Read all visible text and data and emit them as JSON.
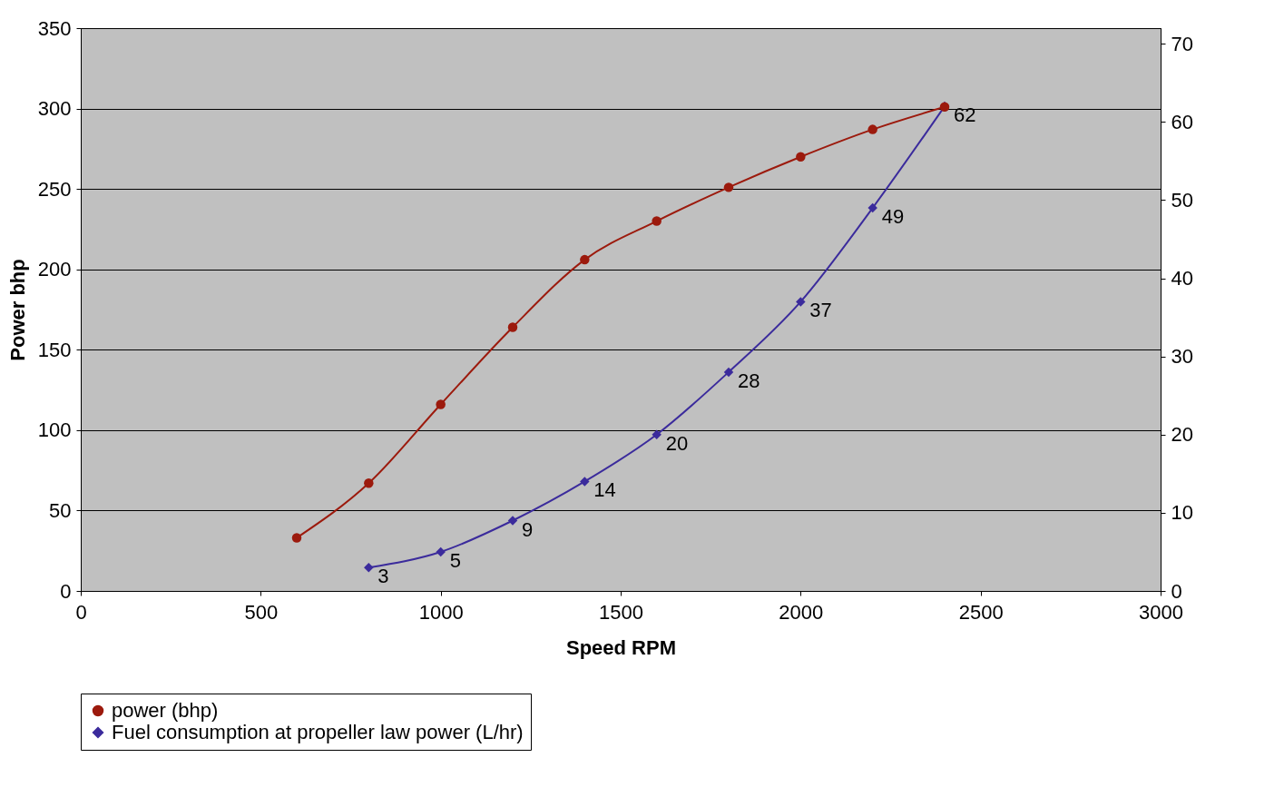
{
  "chart_data": {
    "type": "line",
    "xlabel": "Speed RPM",
    "ylabel": "Power bhp",
    "xlim": [
      0,
      3000
    ],
    "xticks": [
      0,
      500,
      1000,
      1500,
      2000,
      2500,
      3000
    ],
    "ylim": [
      0,
      350
    ],
    "yticks": [
      0,
      50,
      100,
      150,
      200,
      250,
      300,
      350
    ],
    "y2lim": [
      0,
      72
    ],
    "y2ticks": [
      0,
      10,
      20,
      30,
      40,
      50,
      60,
      70
    ],
    "grid": "y",
    "legend": "bottom",
    "line_style": "solid",
    "series": [
      {
        "name": "power (bhp)",
        "color": "#9c1a0d",
        "marker": "circle",
        "x": [
          600,
          800,
          1000,
          1200,
          1400,
          1600,
          1800,
          2000,
          2200,
          2400
        ],
        "values": [
          33,
          67,
          116,
          164,
          206,
          230,
          251,
          270,
          287,
          301
        ]
      },
      {
        "name": "Fuel consumption at propeller law power (L/hr)",
        "color": "#3b2b9c",
        "marker": "diamond",
        "axis": "y2",
        "data_labels": true,
        "x": [
          800,
          1000,
          1200,
          1400,
          1600,
          1800,
          2000,
          2200,
          2400
        ],
        "values": [
          3,
          5,
          9,
          14,
          20,
          28,
          37,
          49,
          62
        ]
      }
    ]
  }
}
